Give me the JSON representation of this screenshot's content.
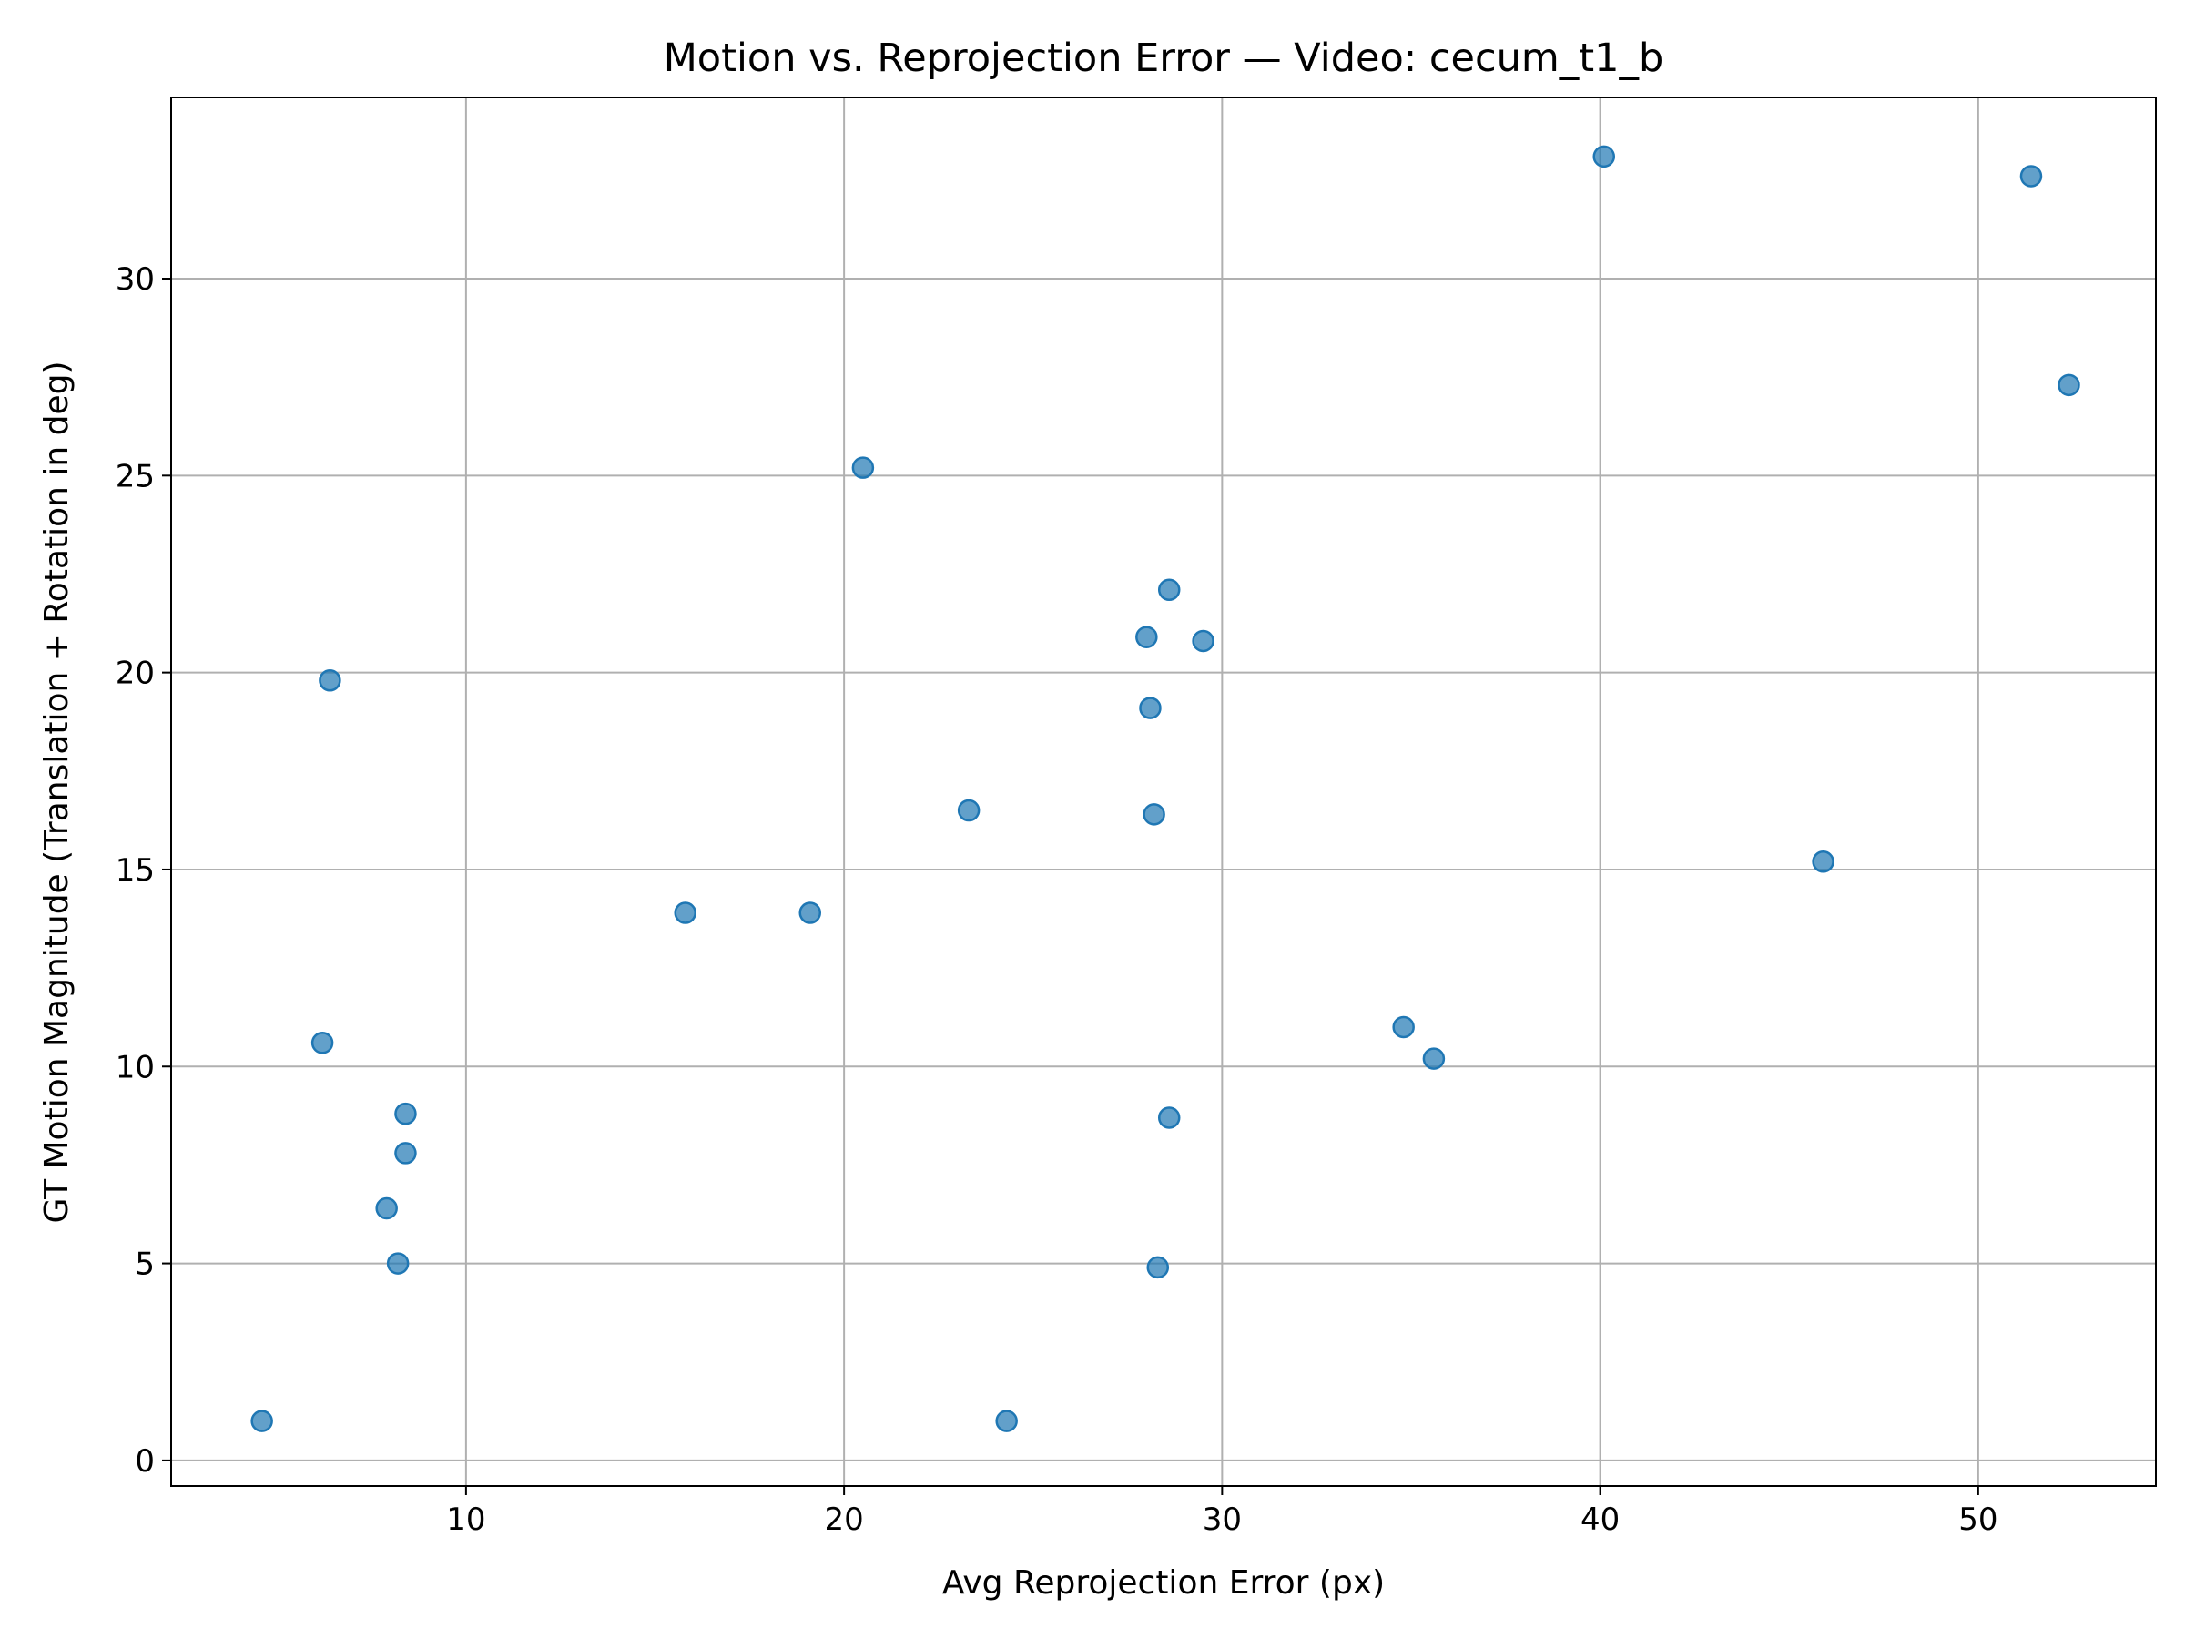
{
  "chart_data": {
    "type": "scatter",
    "title": "Motion vs. Reprojection Error — Video: cecum_t1_b",
    "xlabel": "Avg Reprojection Error (px)",
    "ylabel": "GT Motion Magnitude (Translation + Rotation in deg)",
    "xlim": [
      2.2,
      54.7
    ],
    "ylim": [
      -0.65,
      34.6
    ],
    "xticks": [
      10,
      20,
      30,
      40,
      50
    ],
    "yticks": [
      0,
      5,
      10,
      15,
      20,
      25,
      30
    ],
    "grid": true,
    "marker_color": "#1f77b4",
    "marker_alpha": 0.7,
    "points": [
      {
        "x": 4.6,
        "y": 1.0
      },
      {
        "x": 6.2,
        "y": 10.6
      },
      {
        "x": 6.4,
        "y": 19.8
      },
      {
        "x": 7.9,
        "y": 6.4
      },
      {
        "x": 8.2,
        "y": 5.0
      },
      {
        "x": 8.4,
        "y": 8.8
      },
      {
        "x": 8.4,
        "y": 7.8
      },
      {
        "x": 15.8,
        "y": 13.9
      },
      {
        "x": 19.1,
        "y": 13.9
      },
      {
        "x": 20.5,
        "y": 25.2
      },
      {
        "x": 23.3,
        "y": 16.5
      },
      {
        "x": 24.3,
        "y": 1.0
      },
      {
        "x": 28.0,
        "y": 20.9
      },
      {
        "x": 28.1,
        "y": 19.1
      },
      {
        "x": 28.2,
        "y": 16.4
      },
      {
        "x": 28.3,
        "y": 4.9
      },
      {
        "x": 28.6,
        "y": 22.1
      },
      {
        "x": 28.6,
        "y": 8.7
      },
      {
        "x": 29.5,
        "y": 20.8
      },
      {
        "x": 34.8,
        "y": 11.0
      },
      {
        "x": 35.6,
        "y": 10.2
      },
      {
        "x": 40.1,
        "y": 33.1
      },
      {
        "x": 45.9,
        "y": 15.2
      },
      {
        "x": 51.4,
        "y": 32.6
      },
      {
        "x": 52.4,
        "y": 27.3
      }
    ]
  }
}
